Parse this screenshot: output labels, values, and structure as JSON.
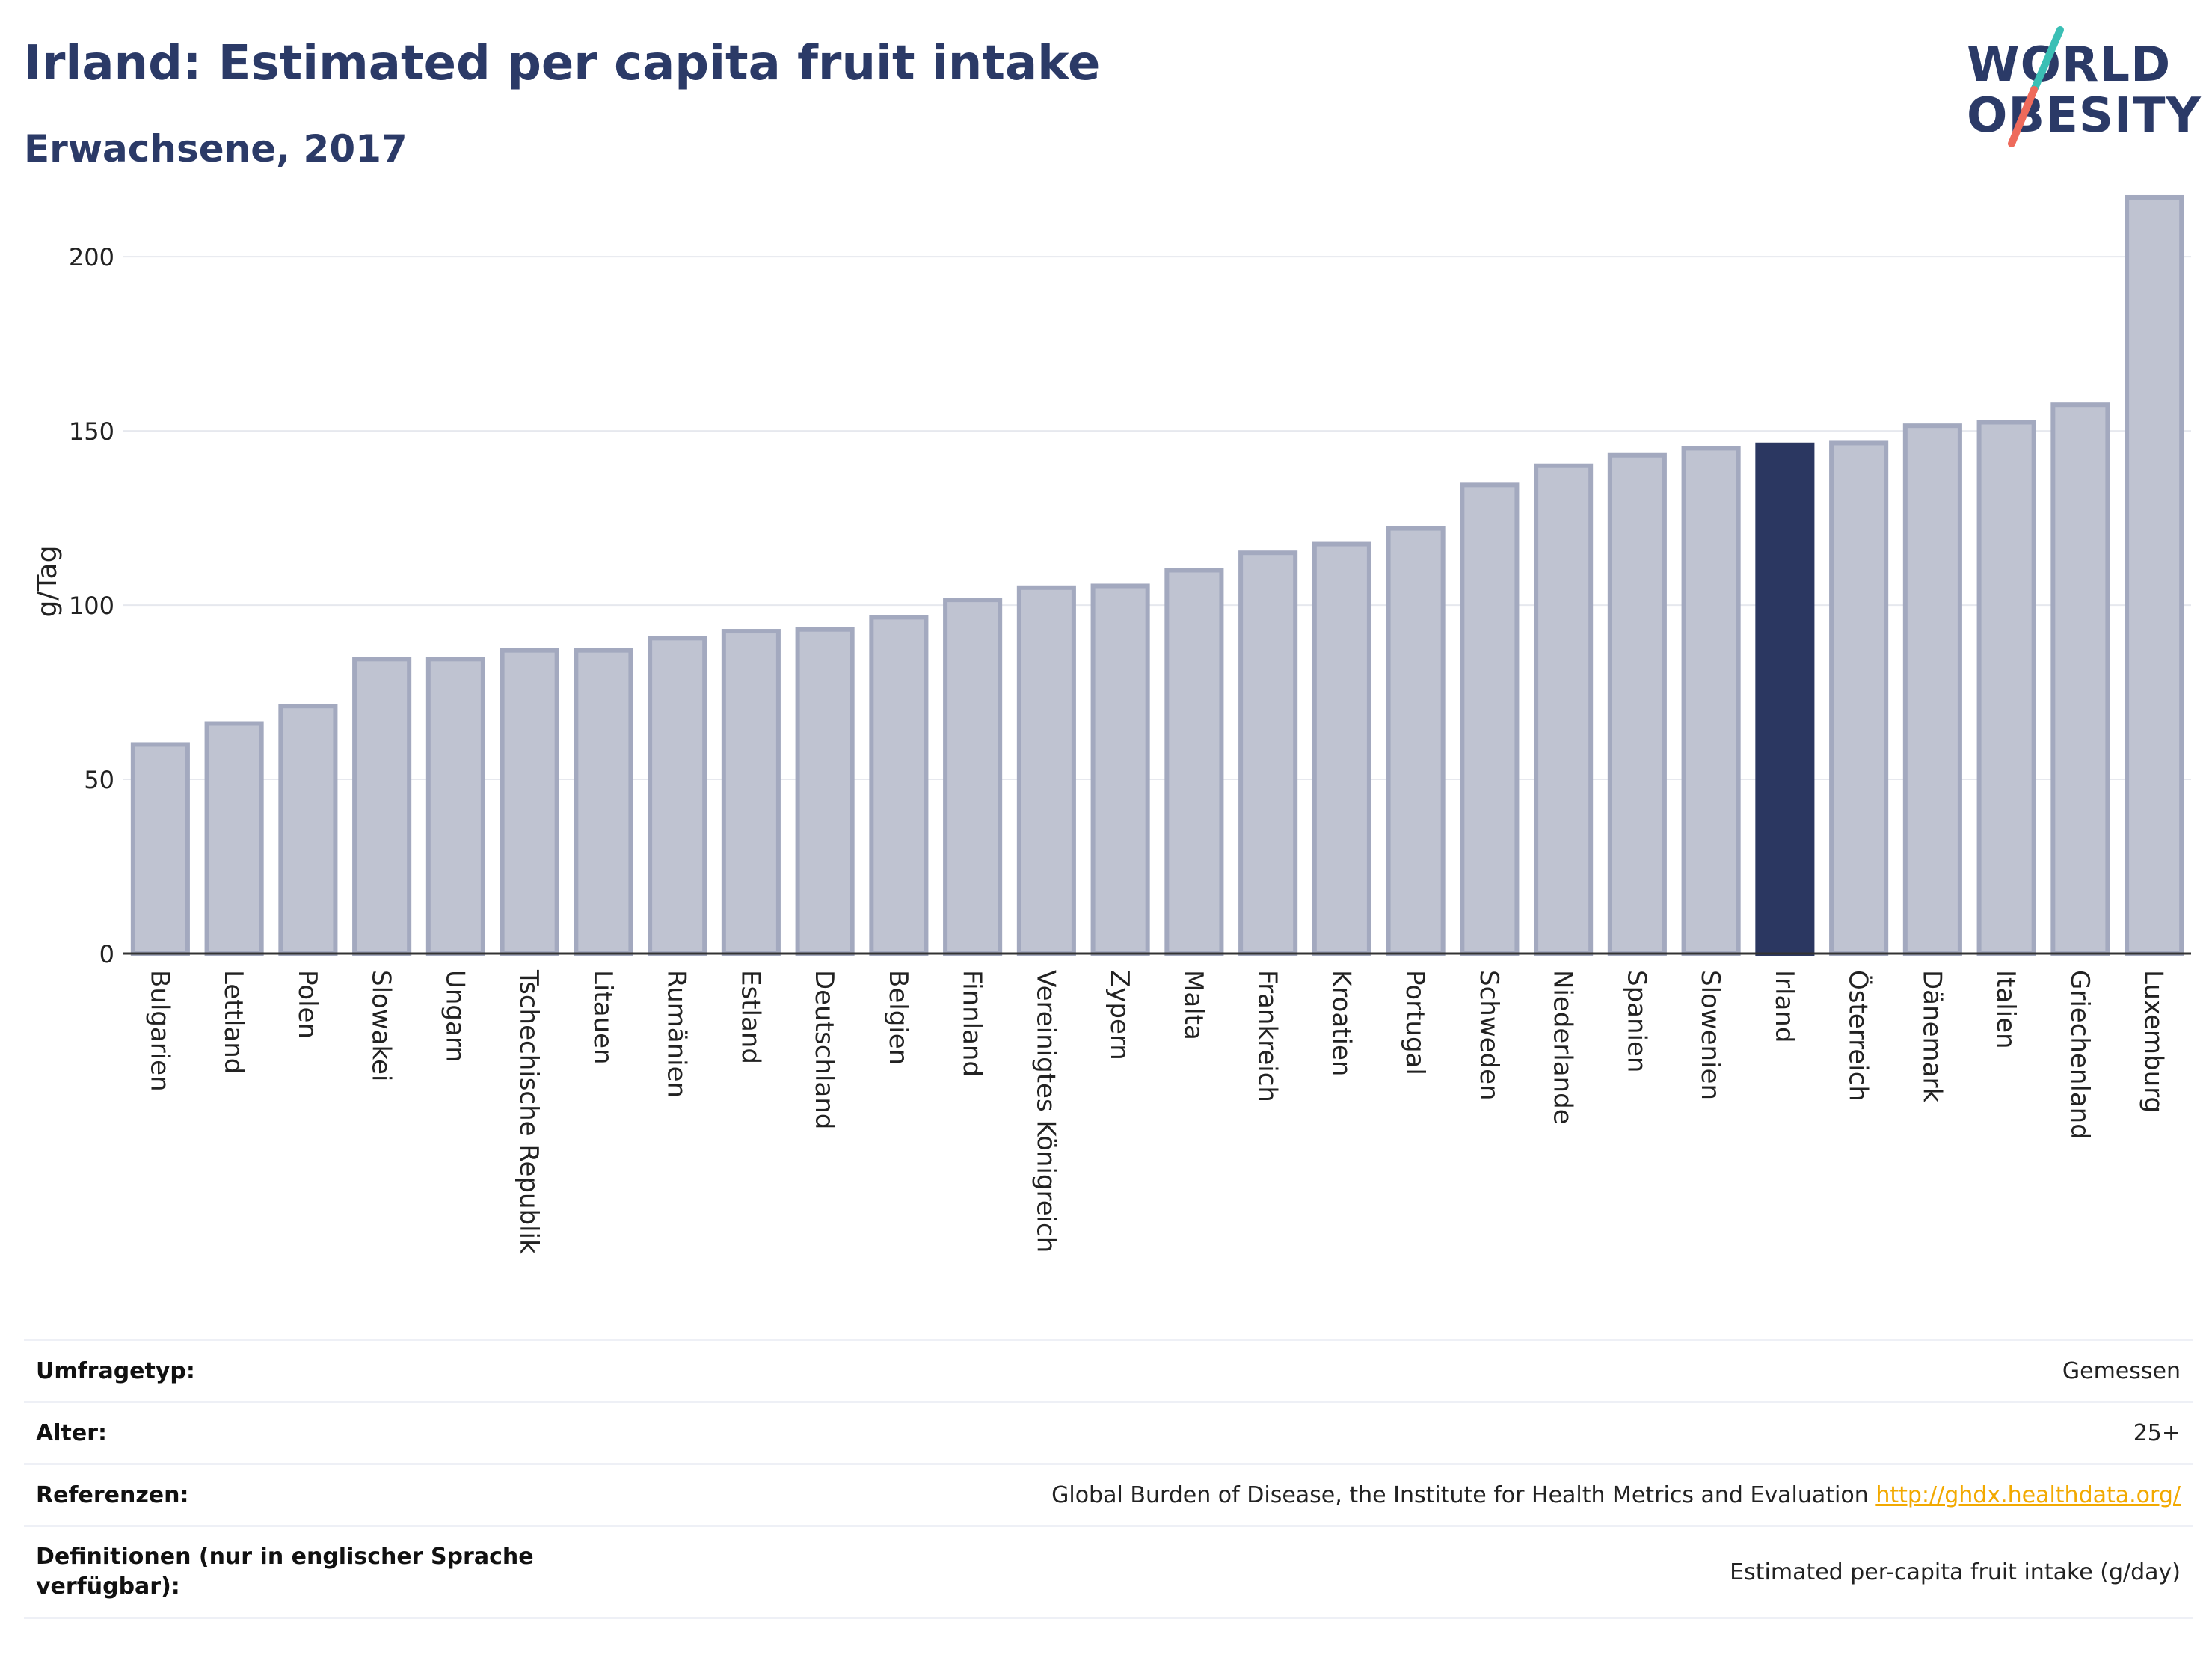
{
  "header": {
    "title": "Irland: Estimated per capita fruit intake",
    "subtitle": "Erwachsene, 2017"
  },
  "logo": {
    "line1": "WORLD",
    "line2": "OBESITY",
    "accent_teal": "#3bbfb5",
    "accent_coral": "#ee6a5b"
  },
  "colors": {
    "bar": "#bfc3d1",
    "bar_stroke": "#a3a9bf",
    "highlight": "#2b3761",
    "text_dark": "#2b3a67"
  },
  "chart_data": {
    "type": "bar",
    "ylabel": "g/Tag",
    "ylim": [
      0,
      220
    ],
    "yticks": [
      0,
      50,
      100,
      150,
      200
    ],
    "grid": true,
    "highlight": "Irland",
    "categories": [
      "Bulgarien",
      "Lettland",
      "Polen",
      "Slowakei",
      "Ungarn",
      "Tschechische Republik",
      "Litauen",
      "Rumänien",
      "Estland",
      "Deutschland",
      "Belgien",
      "Finnland",
      "Vereinigtes Königreich",
      "Zypern",
      "Malta",
      "Frankreich",
      "Kroatien",
      "Portugal",
      "Schweden",
      "Niederlande",
      "Spanien",
      "Slowenien",
      "Irland",
      "Österreich",
      "Dänemark",
      "Italien",
      "Griechenland",
      "Luxemburg"
    ],
    "values": [
      60,
      66,
      71,
      84.5,
      84.5,
      87,
      87,
      90.5,
      92.5,
      93,
      96.5,
      101.5,
      105,
      105.5,
      110,
      115,
      117.5,
      122,
      134.5,
      140,
      143,
      145,
      146,
      146.5,
      151.5,
      152.5,
      157.5,
      217
    ]
  },
  "info": {
    "rows": [
      {
        "label": "Umfragetyp:",
        "value": "Gemessen"
      },
      {
        "label": "Alter:",
        "value": "25+"
      },
      {
        "label": "Referenzen:",
        "value": "Global Burden of Disease, the Institute for Health Metrics and Evaluation",
        "link": "http://ghdx.healthdata.org/"
      },
      {
        "label": "Definitionen (nur in englischer Sprache verfügbar):",
        "value": "Estimated per-capita fruit intake (g/day)"
      }
    ]
  }
}
